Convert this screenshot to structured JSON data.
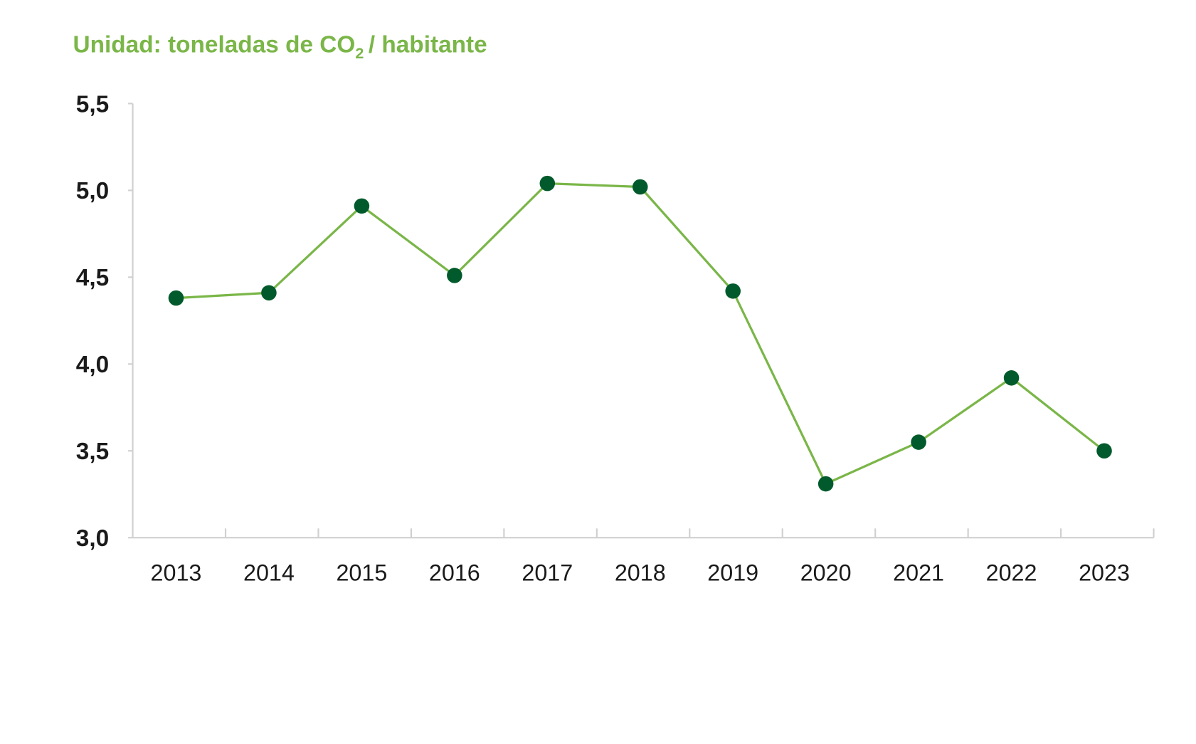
{
  "chart_data": {
    "type": "line",
    "title": "Unidad: toneladas de CO",
    "title_subscript": "2",
    "title_suffix": "/ habitante",
    "xlabel": "",
    "ylabel": "",
    "categories": [
      "2013",
      "2014",
      "2015",
      "2016",
      "2017",
      "2018",
      "2019",
      "2020",
      "2021",
      "2022",
      "2023"
    ],
    "series": [
      {
        "name": "toneladas de CO2 / habitante",
        "values": [
          4.38,
          4.41,
          4.91,
          4.51,
          5.04,
          5.02,
          4.42,
          3.31,
          3.55,
          3.92,
          3.5
        ]
      }
    ],
    "ylim": [
      3.0,
      5.5
    ],
    "yticks": [
      "3,0",
      "3,5",
      "4,0",
      "4,5",
      "5,0",
      "5,5"
    ],
    "ytick_values": [
      3.0,
      3.5,
      4.0,
      4.5,
      5.0,
      5.5
    ],
    "grid": false,
    "legend": "none",
    "colors": {
      "line": "#7ab648",
      "marker": "#005a2b",
      "title": "#7ab648",
      "axis": "#d0d0d0"
    }
  }
}
